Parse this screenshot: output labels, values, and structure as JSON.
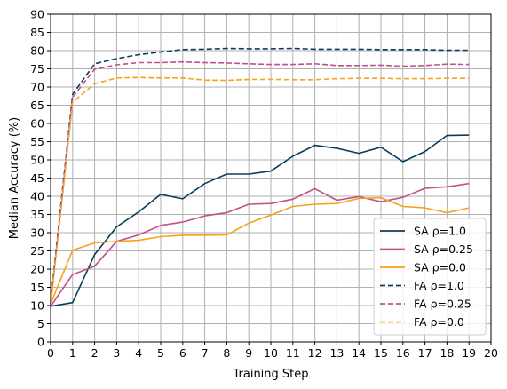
{
  "chart_data": {
    "type": "line",
    "title": "",
    "xlabel": "Training Step",
    "ylabel": "Median Accuracy (%)",
    "xlim": [
      0,
      20
    ],
    "ylim": [
      0,
      90
    ],
    "x_ticks": [
      0,
      1,
      2,
      3,
      4,
      5,
      6,
      7,
      8,
      9,
      10,
      11,
      12,
      13,
      14,
      15,
      16,
      17,
      18,
      19,
      20
    ],
    "y_ticks": [
      0,
      5,
      10,
      15,
      20,
      25,
      30,
      35,
      40,
      45,
      50,
      55,
      60,
      65,
      70,
      75,
      80,
      85,
      90
    ],
    "grid": true,
    "legend_position": "lower-right",
    "x": [
      0,
      1,
      2,
      3,
      4,
      5,
      6,
      7,
      8,
      9,
      10,
      11,
      12,
      13,
      14,
      15,
      16,
      17,
      18,
      19
    ],
    "series": [
      {
        "name": "SA ρ=1.0",
        "color": "#0b3d59",
        "dash": "solid",
        "values": [
          9.8,
          10.8,
          24.0,
          31.6,
          35.7,
          40.5,
          39.3,
          43.5,
          46.1,
          46.1,
          46.9,
          51.0,
          54.0,
          53.2,
          51.8,
          53.5,
          49.5,
          52.3,
          56.7,
          56.8
        ]
      },
      {
        "name": "SA ρ=0.25",
        "color": "#c2508a",
        "dash": "solid",
        "values": [
          9.8,
          18.5,
          20.8,
          27.6,
          29.4,
          32.0,
          32.9,
          34.6,
          35.5,
          37.8,
          38.0,
          39.2,
          42.1,
          38.9,
          39.9,
          38.5,
          39.7,
          42.2,
          42.6,
          43.5
        ]
      },
      {
        "name": "SA ρ=0.0",
        "color": "#f5a31a",
        "dash": "solid",
        "values": [
          10.5,
          25.2,
          27.2,
          27.6,
          27.9,
          28.9,
          29.3,
          29.3,
          29.4,
          32.6,
          34.8,
          37.2,
          37.8,
          38.0,
          39.4,
          39.6,
          37.2,
          36.8,
          35.5,
          36.8
        ]
      },
      {
        "name": "FA ρ=1.0",
        "color": "#0b3d59",
        "dash": "dashed",
        "values": [
          11.0,
          68.0,
          76.4,
          77.8,
          78.9,
          79.6,
          80.3,
          80.4,
          80.6,
          80.5,
          80.5,
          80.6,
          80.4,
          80.4,
          80.4,
          80.3,
          80.3,
          80.3,
          80.1,
          80.1
        ]
      },
      {
        "name": "FA ρ=0.25",
        "color": "#c2508a",
        "dash": "dashed",
        "values": [
          10.5,
          67.2,
          74.9,
          76.1,
          76.7,
          76.7,
          76.9,
          76.7,
          76.6,
          76.4,
          76.2,
          76.2,
          76.4,
          75.9,
          75.9,
          76.0,
          75.7,
          75.9,
          76.3,
          76.2
        ]
      },
      {
        "name": "FA ρ=0.0",
        "color": "#f5a31a",
        "dash": "dashed",
        "values": [
          10.0,
          65.8,
          70.9,
          72.5,
          72.6,
          72.5,
          72.5,
          71.9,
          71.8,
          72.1,
          72.1,
          72.0,
          72.0,
          72.3,
          72.4,
          72.4,
          72.3,
          72.3,
          72.4,
          72.4
        ]
      }
    ]
  }
}
